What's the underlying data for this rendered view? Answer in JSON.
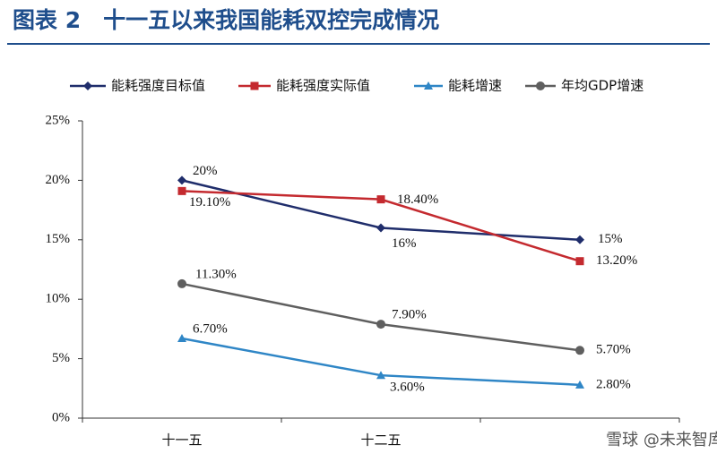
{
  "chart_data": {
    "type": "line",
    "title": "图表 2　十一五以来我国能耗双控完成情况",
    "categories": [
      "十一五",
      "十二五",
      null
    ],
    "series": [
      {
        "name": "能耗强度目标值",
        "color": "#1f2d6b",
        "marker": "diamond",
        "values": [
          20,
          16,
          15
        ],
        "value_labels": [
          "20%",
          "16%",
          "15%"
        ]
      },
      {
        "name": "能耗强度实际值",
        "color": "#c42a2f",
        "marker": "square",
        "values": [
          19.1,
          18.4,
          13.2
        ],
        "value_labels": [
          "19.10%",
          "18.40%",
          "13.20%"
        ]
      },
      {
        "name": "能耗增速",
        "color": "#2f86c6",
        "marker": "triangle",
        "values": [
          6.7,
          3.6,
          2.8
        ],
        "value_labels": [
          "6.70%",
          "3.60%",
          "2.80%"
        ]
      },
      {
        "name": "年均GDP增速",
        "color": "#5f5f5f",
        "marker": "circle",
        "values": [
          11.3,
          7.9,
          5.7
        ],
        "value_labels": [
          "11.30%",
          "7.90%",
          "5.70%"
        ]
      }
    ],
    "ylim": [
      0,
      25
    ],
    "yticks": [
      {
        "value": 0,
        "label": "0%"
      },
      {
        "value": 5,
        "label": "5%"
      },
      {
        "value": 10,
        "label": "10%"
      },
      {
        "value": 15,
        "label": "15%"
      },
      {
        "value": 20,
        "label": "20%"
      },
      {
        "value": 25,
        "label": "25%"
      }
    ],
    "legend": "top",
    "watermark": "雪球 @未来智库"
  }
}
